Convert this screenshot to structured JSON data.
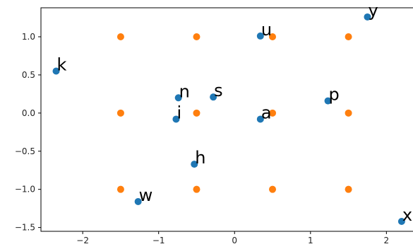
{
  "chart_data": {
    "type": "scatter",
    "title": "",
    "xlabel": "",
    "ylabel": "",
    "xlim": [
      -2.55,
      2.35
    ],
    "ylim": [
      -1.55,
      1.38
    ],
    "xticks": [
      -2,
      -1,
      0,
      1,
      2
    ],
    "yticks": [
      -1.5,
      -1.0,
      -0.5,
      0.0,
      0.5,
      1.0
    ],
    "xtick_labels": [
      "−2",
      "−1",
      "0",
      "1",
      "2"
    ],
    "ytick_labels": [
      "−1.5",
      "−1.0",
      "−0.5",
      "0.0",
      "0.5",
      "1.0"
    ],
    "grid": false,
    "series": [
      {
        "color": "#1f77b4",
        "points": [
          {
            "label": "k",
            "x": -2.35,
            "y": 0.55
          },
          {
            "label": "w",
            "x": -1.27,
            "y": -1.16
          },
          {
            "label": "n",
            "x": -0.74,
            "y": 0.2
          },
          {
            "label": "i",
            "x": -0.77,
            "y": -0.08
          },
          {
            "label": "s",
            "x": -0.28,
            "y": 0.21
          },
          {
            "label": "h",
            "x": -0.53,
            "y": -0.67
          },
          {
            "label": "u",
            "x": 0.34,
            "y": 1.01
          },
          {
            "label": "a",
            "x": 0.34,
            "y": -0.08
          },
          {
            "label": "p",
            "x": 1.23,
            "y": 0.16
          },
          {
            "label": "y",
            "x": 1.75,
            "y": 1.26
          },
          {
            "label": "x",
            "x": 2.2,
            "y": -1.42
          }
        ]
      },
      {
        "color": "#ff7f0e",
        "points": [
          {
            "x": -1.5,
            "y": 1.0
          },
          {
            "x": -0.5,
            "y": 1.0
          },
          {
            "x": 0.5,
            "y": 1.0
          },
          {
            "x": 1.5,
            "y": 1.0
          },
          {
            "x": -1.5,
            "y": 0.0
          },
          {
            "x": -0.5,
            "y": 0.0
          },
          {
            "x": 0.5,
            "y": 0.0
          },
          {
            "x": 1.5,
            "y": 0.0
          },
          {
            "x": -1.5,
            "y": -1.0
          },
          {
            "x": -0.5,
            "y": -1.0
          },
          {
            "x": 0.5,
            "y": -1.0
          },
          {
            "x": 1.5,
            "y": -1.0
          }
        ]
      }
    ]
  }
}
